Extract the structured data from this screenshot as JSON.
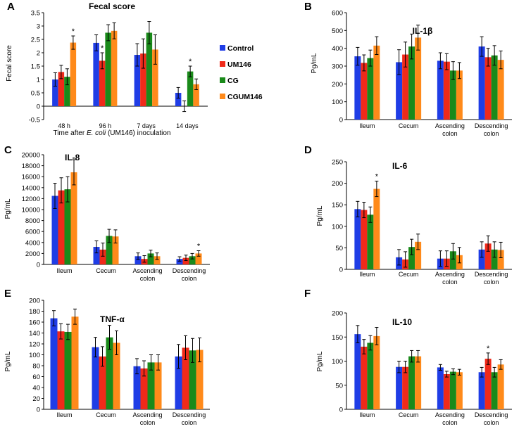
{
  "legend": {
    "series": [
      "Control",
      "UM146",
      "CG",
      "CGUM146"
    ],
    "colors": [
      "#1f3de6",
      "#f02a1a",
      "#1a8a1a",
      "#ff8a1a"
    ]
  },
  "chart_data": [
    {
      "panel": "A",
      "type": "bar",
      "title": "Fecal score",
      "categories": [
        "48 h",
        "96 h",
        "7 days",
        "14 days"
      ],
      "xlabel_parts": [
        "Time after ",
        "E. coli",
        " (UM146) inoculation"
      ],
      "ylabel": "Fecal score",
      "ylim": [
        -0.5,
        3.5
      ],
      "yticks": [
        "-0.5",
        "0",
        "0.5",
        "1",
        "1.5",
        "2",
        "2.5",
        "3",
        "3.5"
      ],
      "series": [
        {
          "name": "Control",
          "values": [
            1.0,
            2.37,
            1.92,
            0.5
          ],
          "errors": [
            0.25,
            0.3,
            0.42,
            0.2
          ]
        },
        {
          "name": "UM146",
          "values": [
            1.28,
            1.7,
            1.97,
            0.0
          ],
          "errors": [
            0.25,
            0.3,
            0.55,
            0.2
          ]
        },
        {
          "name": "CG",
          "values": [
            1.1,
            2.75,
            2.75,
            1.3
          ],
          "errors": [
            0.3,
            0.3,
            0.42,
            0.2
          ]
        },
        {
          "name": "CGUM146",
          "values": [
            2.38,
            2.82,
            2.12,
            0.82
          ],
          "errors": [
            0.25,
            0.3,
            0.55,
            0.2
          ]
        }
      ],
      "annotations": [
        {
          "text": "*",
          "category": 0,
          "series": 3
        },
        {
          "text": "*",
          "category": 1,
          "series": 1
        },
        {
          "text": "*",
          "category": 3,
          "series": 2
        }
      ]
    },
    {
      "panel": "B",
      "type": "bar",
      "title": "IL-1β",
      "categories": [
        "Ileum",
        "Cecum",
        "Ascending colon",
        "Descending colon"
      ],
      "xlabel": "",
      "ylabel": "Pg/mL",
      "ylim": [
        0,
        600
      ],
      "yticks": [
        "0",
        "100",
        "200",
        "300",
        "400",
        "500",
        "600"
      ],
      "series": [
        {
          "name": "Control",
          "values": [
            355,
            322,
            330,
            410
          ],
          "errors": [
            50,
            70,
            45,
            55
          ]
        },
        {
          "name": "UM146",
          "values": [
            318,
            365,
            325,
            350
          ],
          "errors": [
            45,
            70,
            45,
            50
          ]
        },
        {
          "name": "CG",
          "values": [
            345,
            410,
            275,
            360
          ],
          "errors": [
            45,
            70,
            50,
            55
          ]
        },
        {
          "name": "CGUM146",
          "values": [
            415,
            460,
            275,
            335
          ],
          "errors": [
            50,
            70,
            45,
            50
          ]
        }
      ],
      "annotations": []
    },
    {
      "panel": "C",
      "type": "bar",
      "title": "IL-8",
      "categories": [
        "Ileum",
        "Cecum",
        "Ascending colon",
        "Descending colon"
      ],
      "xlabel": "",
      "ylabel": "Pg/mL",
      "ylim": [
        0,
        20000
      ],
      "yticks": [
        "0",
        "2000",
        "4000",
        "6000",
        "8000",
        "10000",
        "12000",
        "14000",
        "16000",
        "18000",
        "20000"
      ],
      "series": [
        {
          "name": "Control",
          "values": [
            12500,
            3200,
            1500,
            1000
          ],
          "errors": [
            2300,
            1100,
            600,
            400
          ]
        },
        {
          "name": "UM146",
          "values": [
            13500,
            2700,
            1000,
            1200
          ],
          "errors": [
            2300,
            1200,
            600,
            500
          ]
        },
        {
          "name": "CG",
          "values": [
            13700,
            5200,
            2000,
            1500
          ],
          "errors": [
            2300,
            1200,
            600,
            500
          ]
        },
        {
          "name": "CGUM146",
          "values": [
            16800,
            5100,
            1500,
            2000
          ],
          "errors": [
            2300,
            1200,
            600,
            500
          ]
        }
      ],
      "annotations": [
        {
          "text": "*",
          "category": 3,
          "series": 3
        }
      ]
    },
    {
      "panel": "D",
      "type": "bar",
      "title": "IL-6",
      "categories": [
        "Ileum",
        "Cecum",
        "Ascending colon",
        "Descending colon"
      ],
      "xlabel": "",
      "ylabel": "Pg/mL",
      "ylim": [
        0,
        250
      ],
      "yticks": [
        "0",
        "50",
        "100",
        "150",
        "200",
        "250"
      ],
      "series": [
        {
          "name": "Control",
          "values": [
            140,
            28,
            25,
            46
          ],
          "errors": [
            18,
            18,
            18,
            18
          ]
        },
        {
          "name": "UM146",
          "values": [
            138,
            23,
            25,
            60
          ],
          "errors": [
            18,
            18,
            18,
            18
          ]
        },
        {
          "name": "CG",
          "values": [
            127,
            52,
            42,
            46
          ],
          "errors": [
            18,
            18,
            18,
            18
          ]
        },
        {
          "name": "CGUM146",
          "values": [
            187,
            64,
            33,
            45
          ],
          "errors": [
            18,
            18,
            18,
            18
          ]
        }
      ],
      "annotations": [
        {
          "text": "*",
          "category": 0,
          "series": 3
        }
      ]
    },
    {
      "panel": "E",
      "type": "bar",
      "title": "TNF-α",
      "categories": [
        "Ileum",
        "Cecum",
        "Ascending colon",
        "Descending colon"
      ],
      "xlabel": "",
      "ylabel": "Pg/mL",
      "ylim": [
        0,
        200
      ],
      "yticks": [
        "0",
        "20",
        "40",
        "60",
        "80",
        "100",
        "120",
        "140",
        "160",
        "180",
        "200"
      ],
      "series": [
        {
          "name": "Control",
          "values": [
            167,
            114,
            79,
            97
          ],
          "errors": [
            14,
            18,
            14,
            22
          ]
        },
        {
          "name": "UM146",
          "values": [
            143,
            97,
            75,
            113
          ],
          "errors": [
            14,
            18,
            14,
            22
          ]
        },
        {
          "name": "CG",
          "values": [
            142,
            132,
            86,
            108
          ],
          "errors": [
            14,
            22,
            14,
            22
          ]
        },
        {
          "name": "CGUM146",
          "values": [
            170,
            122,
            86,
            109
          ],
          "errors": [
            14,
            22,
            14,
            22
          ]
        }
      ],
      "annotations": []
    },
    {
      "panel": "F",
      "type": "bar",
      "title": "IL-10",
      "categories": [
        "Ileum",
        "Cecum",
        "Ascending colon",
        "Descending colon"
      ],
      "xlabel": "",
      "ylabel": "Pg/mL",
      "ylim": [
        0,
        200
      ],
      "yticks": [
        "0",
        "50",
        "100",
        "150",
        "200"
      ],
      "series": [
        {
          "name": "Control",
          "values": [
            156,
            88,
            87,
            77
          ],
          "errors": [
            18,
            12,
            6,
            10
          ]
        },
        {
          "name": "UM146",
          "values": [
            130,
            88,
            73,
            105
          ],
          "errors": [
            15,
            12,
            6,
            12
          ]
        },
        {
          "name": "CG",
          "values": [
            138,
            110,
            78,
            77
          ],
          "errors": [
            15,
            12,
            6,
            10
          ]
        },
        {
          "name": "CGUM146",
          "values": [
            152,
            110,
            77,
            93
          ],
          "errors": [
            18,
            12,
            6,
            10
          ]
        }
      ],
      "annotations": [
        {
          "text": "*",
          "category": 3,
          "series": 1
        }
      ]
    }
  ]
}
